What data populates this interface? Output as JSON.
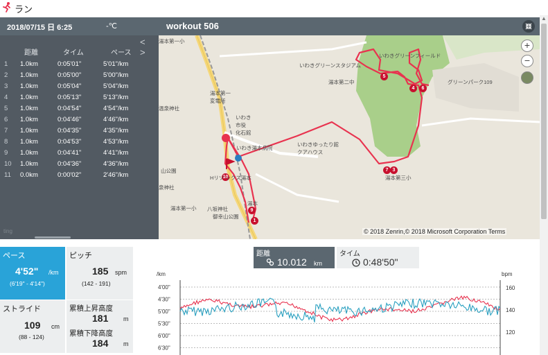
{
  "app": {
    "title": "ラン"
  },
  "header": {
    "datetime": "2018/07/15 日 6:25",
    "temperature": "-℃",
    "workout_name": "workout 506",
    "expand_icon": "expand-icon"
  },
  "splits": {
    "nav_prev": "<",
    "nav_next": ">",
    "columns": [
      "距離",
      "タイム",
      "ペース"
    ],
    "rows": [
      {
        "n": "1",
        "dist": "1.0km",
        "time": "0:05'01\"",
        "pace": "5'01\"/km"
      },
      {
        "n": "2",
        "dist": "1.0km",
        "time": "0:05'00\"",
        "pace": "5'00\"/km"
      },
      {
        "n": "3",
        "dist": "1.0km",
        "time": "0:05'04\"",
        "pace": "5'04\"/km"
      },
      {
        "n": "4",
        "dist": "1.0km",
        "time": "0:05'13\"",
        "pace": "5'13\"/km"
      },
      {
        "n": "5",
        "dist": "1.0km",
        "time": "0:04'54\"",
        "pace": "4'54\"/km"
      },
      {
        "n": "6",
        "dist": "1.0km",
        "time": "0:04'46\"",
        "pace": "4'46\"/km"
      },
      {
        "n": "7",
        "dist": "1.0km",
        "time": "0:04'35\"",
        "pace": "4'35\"/km"
      },
      {
        "n": "8",
        "dist": "1.0km",
        "time": "0:04'53\"",
        "pace": "4'53\"/km"
      },
      {
        "n": "9",
        "dist": "1.0km",
        "time": "0:04'41\"",
        "pace": "4'41\"/km"
      },
      {
        "n": "10",
        "dist": "1.0km",
        "time": "0:04'36\"",
        "pace": "4'36\"/km"
      },
      {
        "n": "11",
        "dist": "0.0km",
        "time": "0:00'02\"",
        "pace": "2'46\"/km"
      }
    ],
    "faint_text": "ting"
  },
  "map": {
    "labels": {
      "l1": "いわきグリーンスタジアム",
      "l2": "いわきグリーンフィールド",
      "l3": "グリーンパーク109",
      "l4": "湯本第二中",
      "l5": "湯本第一\n変電所",
      "l6": "いわき\n市役\n化石館",
      "l7": "いわき湯本病院",
      "l8": "いわきゆったり館\nクアハウス",
      "l9": "湯本第三小",
      "l10": "Hリゾ ックス湯本",
      "l11": "湯本",
      "l12": "八坂神社",
      "l13": "御幸山公園",
      "l14": "湯本第一小",
      "l15": "温泉神社",
      "l16": "山公園",
      "l17": "湯本第一小",
      "l18": "泉神社",
      "l19": "中山公園"
    },
    "zoom_in": "+",
    "zoom_out": "−",
    "copyright": "© 2018 Zenrin,© 2018 Microsoft Corporation Terms",
    "markers": [
      "1",
      "4",
      "5",
      "6",
      "7",
      "3",
      "9",
      "10"
    ]
  },
  "stats": {
    "pace": {
      "label": "ペース",
      "value": "4'52\"",
      "unit": "/km",
      "range": "(6'19\" - 4'14\")"
    },
    "pitch": {
      "label": "ピッチ",
      "value": "185",
      "unit": "spm",
      "range": "(142 - 191)"
    },
    "stride": {
      "label": "ストライド",
      "value": "109",
      "unit": "cm",
      "range": "(88 - 124)"
    },
    "elev_up": {
      "label": "累積上昇高度",
      "value": "181",
      "unit": "m"
    },
    "elev_down": {
      "label": "累積下降高度",
      "value": "184",
      "unit": "m"
    }
  },
  "tabs": {
    "distance": {
      "label": "距離",
      "value": "10.012",
      "unit": "km"
    },
    "time": {
      "label": "タイム",
      "value": "0:48'50\""
    }
  },
  "colors": {
    "accent": "#29a3d8",
    "header": "#5b6770",
    "route": "#e8334f",
    "hr": "#e8334f",
    "pace": "#2aa0c0"
  },
  "chart_data": {
    "type": "line",
    "left_axis_label": "/km",
    "right_axis_label": "bpm",
    "left_ticks": [
      "4'00\"",
      "4'30\"",
      "5'00\"",
      "5'30\"",
      "6'00\"",
      "6'30\""
    ],
    "right_ticks": [
      "160",
      "140",
      "120"
    ],
    "grid": true,
    "series": []
  }
}
